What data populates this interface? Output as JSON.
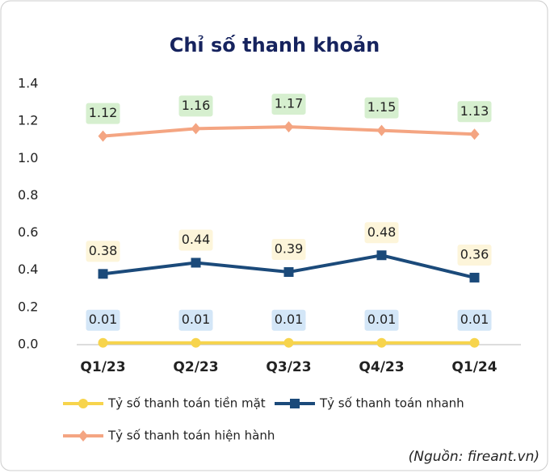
{
  "chart_data": {
    "type": "line",
    "title": "Chỉ số thanh khoản",
    "categories": [
      "Q1/23",
      "Q2/23",
      "Q3/23",
      "Q4/23",
      "Q1/24"
    ],
    "series": [
      {
        "name": "Tỷ số thanh toán tiền mặt",
        "color": "#f7d44c",
        "marker": "circle",
        "label_bg": "#d3e6f7",
        "values": [
          0.01,
          0.01,
          0.01,
          0.01,
          0.01
        ]
      },
      {
        "name": "Tỷ số thanh toán nhanh",
        "color": "#1b4a7a",
        "marker": "square",
        "label_bg": "#fdf5da",
        "values": [
          0.38,
          0.44,
          0.39,
          0.48,
          0.36
        ]
      },
      {
        "name": "Tỷ số thanh toán hiện hành",
        "color": "#f4a582",
        "marker": "diamond",
        "label_bg": "#d6efcf",
        "values": [
          1.12,
          1.16,
          1.17,
          1.15,
          1.13
        ]
      }
    ],
    "ylim": [
      0,
      1.4
    ],
    "yticks": [
      {
        "value": 0,
        "label": "0.0"
      },
      0.2,
      0.4,
      0.6,
      0.8,
      {
        "value": 1,
        "label": "1.0"
      },
      1.2,
      1.4
    ],
    "grid": false,
    "legend": "bottom",
    "source": "(Nguồn: fireant.vn)"
  }
}
